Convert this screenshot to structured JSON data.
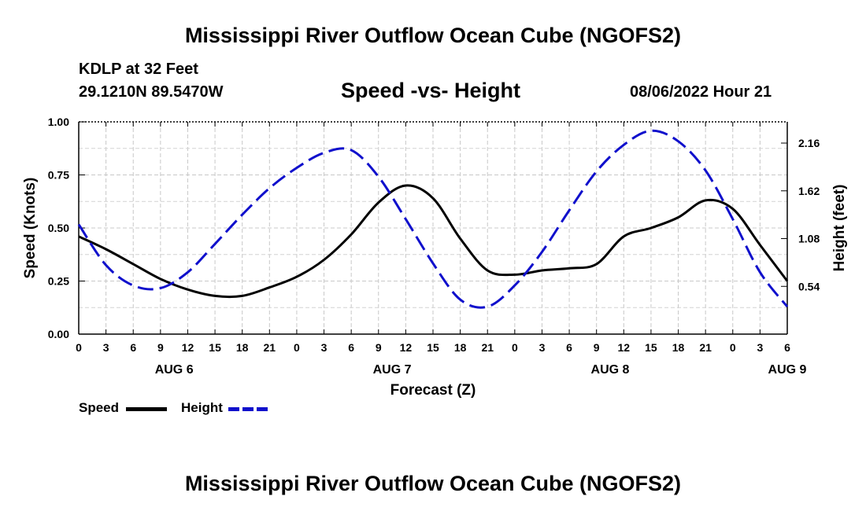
{
  "header": {
    "title": "Mississippi River Outflow Ocean Cube (NGOFS2)",
    "station": "KDLP at 32 Feet",
    "coords": "29.1210N  89.5470W",
    "subtitle": "Speed -vs- Height",
    "datetime": "08/06/2022 Hour 21"
  },
  "footer": {
    "title": "Mississippi River Outflow Ocean Cube (NGOFS2)"
  },
  "legend": {
    "speed_label": "Speed",
    "height_label": "Height"
  },
  "chart_data": {
    "type": "line",
    "title": "Speed -vs- Height",
    "xlabel": "Forecast (Z)",
    "ylabel": "Speed (Knots)",
    "y2label": "Height (feet)",
    "x_ticks": [
      "0",
      "3",
      "6",
      "9",
      "12",
      "15",
      "18",
      "21",
      "0",
      "3",
      "6",
      "9",
      "12",
      "15",
      "18",
      "21",
      "0",
      "3",
      "6",
      "9",
      "12",
      "15",
      "18",
      "21",
      "0",
      "3",
      "6"
    ],
    "date_labels": [
      {
        "text": "AUG 6",
        "hour": 10.5
      },
      {
        "text": "AUG 7",
        "hour": 34.5
      },
      {
        "text": "AUG 8",
        "hour": 58.5
      },
      {
        "text": "AUG 9",
        "hour": 78
      }
    ],
    "x_range_hours": [
      0,
      78
    ],
    "ylim": [
      0,
      1.0
    ],
    "y_ticks": [
      "0.00",
      "0.25",
      "0.50",
      "0.75",
      "1.00"
    ],
    "y2lim": [
      0,
      2.4
    ],
    "y2_ticks": [
      "0.54",
      "1.08",
      "1.62",
      "2.16"
    ],
    "grid": true,
    "series": [
      {
        "name": "Speed",
        "axis": "left",
        "color": "#000000",
        "dash": "solid",
        "x": [
          0,
          3,
          6,
          9,
          12,
          15,
          18,
          21,
          24,
          27,
          30,
          33,
          36,
          39,
          42,
          45,
          48,
          51,
          54,
          57,
          60,
          63,
          66,
          69,
          72,
          75,
          78
        ],
        "values": [
          0.46,
          0.4,
          0.33,
          0.26,
          0.21,
          0.18,
          0.18,
          0.22,
          0.27,
          0.35,
          0.47,
          0.62,
          0.7,
          0.64,
          0.45,
          0.3,
          0.28,
          0.3,
          0.31,
          0.33,
          0.46,
          0.5,
          0.55,
          0.63,
          0.59,
          0.42,
          0.25
        ]
      },
      {
        "name": "Height",
        "axis": "right",
        "color": "#1010cc",
        "dash": "dashed",
        "x": [
          0,
          3,
          6,
          9,
          12,
          15,
          18,
          21,
          24,
          27,
          30,
          33,
          36,
          39,
          42,
          45,
          48,
          51,
          54,
          57,
          60,
          63,
          66,
          69,
          72,
          75,
          78
        ],
        "values": [
          1.24,
          0.78,
          0.55,
          0.52,
          0.7,
          1.02,
          1.35,
          1.65,
          1.88,
          2.05,
          2.08,
          1.78,
          1.3,
          0.8,
          0.39,
          0.31,
          0.55,
          0.93,
          1.4,
          1.84,
          2.14,
          2.3,
          2.18,
          1.85,
          1.3,
          0.7,
          0.31
        ]
      }
    ]
  }
}
